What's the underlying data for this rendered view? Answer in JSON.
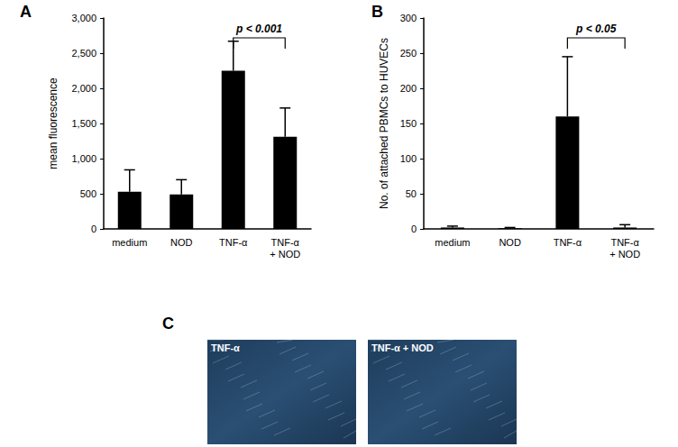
{
  "chart_data": [
    {
      "type": "bar",
      "title": "A",
      "ylabel": "mean fluorescence",
      "categories": [
        "medium",
        "NOD",
        "TNF-α",
        "TNF-α + NOD"
      ],
      "values": [
        530,
        490,
        2250,
        1310
      ],
      "errors": [
        310,
        210,
        420,
        410
      ],
      "color": "#000000",
      "ylim": [
        0,
        3000
      ],
      "yticks": [
        0,
        500,
        1000,
        1500,
        2000,
        2500,
        3000
      ],
      "grid": false,
      "annotations": [
        {
          "text": "p < 0.001",
          "from": "TNF-α",
          "to": "TNF-α + NOD"
        }
      ]
    },
    {
      "type": "bar",
      "title": "B",
      "ylabel": "No. of attached PBMCs to HUVECs",
      "categories": [
        "medium",
        "NOD",
        "TNF-α",
        "TNF-α + NOD"
      ],
      "values": [
        2,
        1,
        160,
        2
      ],
      "errors": [
        2,
        1,
        85,
        4
      ],
      "color": "#000000",
      "ylim": [
        0,
        300
      ],
      "yticks": [
        0,
        50,
        100,
        150,
        200,
        250,
        300
      ],
      "grid": false,
      "annotations": [
        {
          "text": "p < 0.05",
          "from": "TNF-α",
          "to": "TNF-α + NOD"
        }
      ]
    }
  ],
  "images": {
    "label": "C",
    "panels": [
      {
        "label": "TNF-α"
      },
      {
        "label": "TNF-α + NOD"
      }
    ]
  }
}
